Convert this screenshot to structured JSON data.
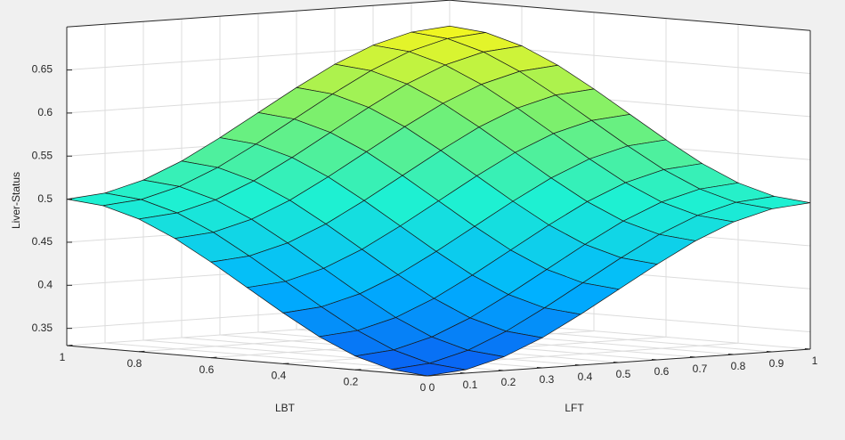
{
  "chart_data": {
    "type": "surface",
    "xlabel": "LBT",
    "ylabel": "LFT",
    "zlabel": "Liver-Status",
    "x": [
      0,
      0.1,
      0.2,
      0.3,
      0.4,
      0.5,
      0.6,
      0.7,
      0.8,
      0.9,
      1
    ],
    "y": [
      0,
      0.1,
      0.2,
      0.3,
      0.4,
      0.5,
      0.6,
      0.7,
      0.8,
      0.9,
      1
    ],
    "z": [
      [
        0.33,
        0.334,
        0.346,
        0.365,
        0.389,
        0.415,
        0.441,
        0.465,
        0.484,
        0.496,
        0.5
      ],
      [
        0.334,
        0.338,
        0.35,
        0.369,
        0.393,
        0.419,
        0.445,
        0.469,
        0.488,
        0.5,
        0.504
      ],
      [
        0.346,
        0.35,
        0.362,
        0.381,
        0.405,
        0.431,
        0.457,
        0.481,
        0.5,
        0.512,
        0.516
      ],
      [
        0.365,
        0.369,
        0.381,
        0.4,
        0.424,
        0.45,
        0.476,
        0.5,
        0.519,
        0.531,
        0.535
      ],
      [
        0.389,
        0.393,
        0.405,
        0.424,
        0.448,
        0.474,
        0.5,
        0.524,
        0.543,
        0.555,
        0.559
      ],
      [
        0.415,
        0.419,
        0.431,
        0.45,
        0.474,
        0.5,
        0.526,
        0.55,
        0.569,
        0.581,
        0.585
      ],
      [
        0.441,
        0.445,
        0.457,
        0.476,
        0.5,
        0.526,
        0.552,
        0.576,
        0.595,
        0.607,
        0.611
      ],
      [
        0.465,
        0.469,
        0.481,
        0.5,
        0.524,
        0.55,
        0.576,
        0.6,
        0.619,
        0.631,
        0.635
      ],
      [
        0.484,
        0.488,
        0.5,
        0.519,
        0.543,
        0.569,
        0.595,
        0.619,
        0.638,
        0.65,
        0.654
      ],
      [
        0.496,
        0.5,
        0.512,
        0.531,
        0.555,
        0.581,
        0.607,
        0.631,
        0.65,
        0.662,
        0.666
      ],
      [
        0.5,
        0.504,
        0.516,
        0.535,
        0.559,
        0.585,
        0.611,
        0.635,
        0.654,
        0.666,
        0.67
      ]
    ],
    "xlim": [
      0,
      1
    ],
    "xticks": [
      0,
      0.2,
      0.4,
      0.6,
      0.8,
      1
    ],
    "ylim": [
      0,
      1
    ],
    "yticks": [
      0,
      0.1,
      0.2,
      0.3,
      0.4,
      0.5,
      0.6,
      0.7,
      0.8,
      0.9,
      1
    ],
    "zlim": [
      0.33,
      0.7
    ],
    "zticks": [
      0.35,
      0.4,
      0.45,
      0.5,
      0.55,
      0.6,
      0.65
    ],
    "grid": true,
    "colormap": [
      "#0a5cf2",
      "#00b4ff",
      "#1ef0d2",
      "#78f070",
      "#f5f51e"
    ]
  }
}
